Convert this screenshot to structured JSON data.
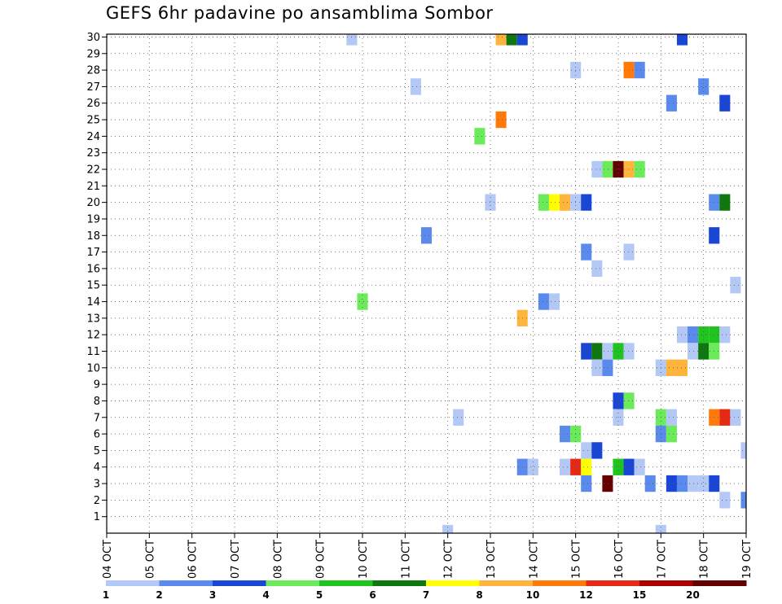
{
  "chart_data": {
    "type": "heatmap",
    "title": "GEFS 6hr padavine po ansamblima Sombor",
    "x_ticks": [
      "04 OCT",
      "05 OCT",
      "06 OCT",
      "07 OCT",
      "08 OCT",
      "09 OCT",
      "10 OCT",
      "11 OCT",
      "12 OCT",
      "13 OCT",
      "14 OCT",
      "15 OCT",
      "16 OCT",
      "17 OCT",
      "18 OCT",
      "19 OCT"
    ],
    "x_range_days": [
      0,
      15
    ],
    "y_ticks": [
      "1",
      "2",
      "3",
      "4",
      "5",
      "6",
      "7",
      "8",
      "9",
      "10",
      "11",
      "12",
      "13",
      "14",
      "15",
      "16",
      "17",
      "18",
      "19",
      "20",
      "21",
      "22",
      "23",
      "24",
      "25",
      "26",
      "27",
      "28",
      "29",
      "30"
    ],
    "y_range": [
      0,
      30
    ],
    "grid": true,
    "step_hours": 6,
    "legend": {
      "placement": "bottom",
      "labels": [
        "1",
        "2",
        "3",
        "4",
        "5",
        "6",
        "7",
        "8",
        "10",
        "12",
        "15",
        "20"
      ],
      "colors": [
        "#b4c8f5",
        "#5a8aeb",
        "#1a46d6",
        "#6bea5a",
        "#1fc41f",
        "#0e780e",
        "#ffff00",
        "#ffb43c",
        "#ff7a0a",
        "#e62814",
        "#aa0000",
        "#640000"
      ]
    },
    "cells": [
      {
        "member": 30,
        "day": 5.75,
        "value": 1
      },
      {
        "member": 30,
        "day": 9.25,
        "value": 8
      },
      {
        "member": 30,
        "day": 9.5,
        "value": 6
      },
      {
        "member": 30,
        "day": 9.75,
        "value": 3
      },
      {
        "member": 30,
        "day": 13.5,
        "value": 3
      },
      {
        "member": 28,
        "day": 11.0,
        "value": 1
      },
      {
        "member": 28,
        "day": 12.25,
        "value": 10
      },
      {
        "member": 28,
        "day": 12.5,
        "value": 2
      },
      {
        "member": 27,
        "day": 7.25,
        "value": 1
      },
      {
        "member": 27,
        "day": 14.0,
        "value": 2
      },
      {
        "member": 26,
        "day": 13.25,
        "value": 2
      },
      {
        "member": 26,
        "day": 14.5,
        "value": 3
      },
      {
        "member": 25,
        "day": 9.25,
        "value": 10
      },
      {
        "member": 24,
        "day": 8.75,
        "value": 4
      },
      {
        "member": 22,
        "day": 11.5,
        "value": 1
      },
      {
        "member": 22,
        "day": 11.75,
        "value": 4
      },
      {
        "member": 22,
        "day": 12.0,
        "value": 20
      },
      {
        "member": 22,
        "day": 12.25,
        "value": 8
      },
      {
        "member": 22,
        "day": 12.5,
        "value": 4
      },
      {
        "member": 20,
        "day": 9.0,
        "value": 1
      },
      {
        "member": 20,
        "day": 10.25,
        "value": 4
      },
      {
        "member": 20,
        "day": 10.5,
        "value": 7
      },
      {
        "member": 20,
        "day": 10.75,
        "value": 8
      },
      {
        "member": 20,
        "day": 11.0,
        "value": 1
      },
      {
        "member": 20,
        "day": 11.25,
        "value": 3
      },
      {
        "member": 20,
        "day": 14.25,
        "value": 2
      },
      {
        "member": 20,
        "day": 14.5,
        "value": 6
      },
      {
        "member": 18,
        "day": 7.5,
        "value": 2
      },
      {
        "member": 18,
        "day": 14.25,
        "value": 3
      },
      {
        "member": 17,
        "day": 11.25,
        "value": 2
      },
      {
        "member": 17,
        "day": 12.25,
        "value": 1
      },
      {
        "member": 16,
        "day": 11.5,
        "value": 1
      },
      {
        "member": 15,
        "day": 14.75,
        "value": 1
      },
      {
        "member": 14,
        "day": 6.0,
        "value": 4
      },
      {
        "member": 14,
        "day": 10.25,
        "value": 2
      },
      {
        "member": 14,
        "day": 10.5,
        "value": 1
      },
      {
        "member": 13,
        "day": 9.75,
        "value": 8
      },
      {
        "member": 12,
        "day": 13.5,
        "value": 1
      },
      {
        "member": 12,
        "day": 13.75,
        "value": 2
      },
      {
        "member": 12,
        "day": 14.0,
        "value": 5
      },
      {
        "member": 12,
        "day": 14.25,
        "value": 5
      },
      {
        "member": 12,
        "day": 14.5,
        "value": 1
      },
      {
        "member": 11,
        "day": 11.25,
        "value": 3
      },
      {
        "member": 11,
        "day": 11.5,
        "value": 6
      },
      {
        "member": 11,
        "day": 11.75,
        "value": 1
      },
      {
        "member": 11,
        "day": 12.0,
        "value": 5
      },
      {
        "member": 11,
        "day": 12.25,
        "value": 1
      },
      {
        "member": 11,
        "day": 13.75,
        "value": 1
      },
      {
        "member": 11,
        "day": 14.0,
        "value": 6
      },
      {
        "member": 11,
        "day": 14.25,
        "value": 4
      },
      {
        "member": 10,
        "day": 11.5,
        "value": 1
      },
      {
        "member": 10,
        "day": 11.75,
        "value": 2
      },
      {
        "member": 10,
        "day": 13.0,
        "value": 1
      },
      {
        "member": 10,
        "day": 13.25,
        "value": 8
      },
      {
        "member": 10,
        "day": 13.5,
        "value": 8
      },
      {
        "member": 8,
        "day": 12.0,
        "value": 3
      },
      {
        "member": 8,
        "day": 12.25,
        "value": 4
      },
      {
        "member": 7,
        "day": 8.25,
        "value": 1
      },
      {
        "member": 7,
        "day": 12.0,
        "value": 1
      },
      {
        "member": 7,
        "day": 13.0,
        "value": 4
      },
      {
        "member": 7,
        "day": 13.25,
        "value": 1
      },
      {
        "member": 7,
        "day": 14.25,
        "value": 10
      },
      {
        "member": 7,
        "day": 14.5,
        "value": 12
      },
      {
        "member": 7,
        "day": 14.75,
        "value": 1
      },
      {
        "member": 6,
        "day": 10.75,
        "value": 2
      },
      {
        "member": 6,
        "day": 11.0,
        "value": 4
      },
      {
        "member": 6,
        "day": 13.0,
        "value": 2
      },
      {
        "member": 6,
        "day": 13.25,
        "value": 4
      },
      {
        "member": 5,
        "day": 11.25,
        "value": 1
      },
      {
        "member": 5,
        "day": 11.5,
        "value": 3
      },
      {
        "member": 5,
        "day": 15.0,
        "value": 1
      },
      {
        "member": 4,
        "day": 9.75,
        "value": 2
      },
      {
        "member": 4,
        "day": 10.0,
        "value": 1
      },
      {
        "member": 4,
        "day": 10.75,
        "value": 1
      },
      {
        "member": 4,
        "day": 11.0,
        "value": 12
      },
      {
        "member": 4,
        "day": 11.25,
        "value": 7
      },
      {
        "member": 4,
        "day": 12.0,
        "value": 5
      },
      {
        "member": 4,
        "day": 12.25,
        "value": 3
      },
      {
        "member": 4,
        "day": 12.5,
        "value": 1
      },
      {
        "member": 3,
        "day": 11.25,
        "value": 2
      },
      {
        "member": 3,
        "day": 11.75,
        "value": 20
      },
      {
        "member": 3,
        "day": 12.75,
        "value": 2
      },
      {
        "member": 3,
        "day": 13.25,
        "value": 3
      },
      {
        "member": 3,
        "day": 13.5,
        "value": 2
      },
      {
        "member": 3,
        "day": 13.75,
        "value": 1
      },
      {
        "member": 3,
        "day": 14.0,
        "value": 1
      },
      {
        "member": 3,
        "day": 14.25,
        "value": 3
      },
      {
        "member": 2,
        "day": 14.5,
        "value": 1
      },
      {
        "member": 2,
        "day": 15.0,
        "value": 2
      },
      {
        "member": 0,
        "day": 8.0,
        "value": 1
      },
      {
        "member": 0,
        "day": 13.0,
        "value": 1
      }
    ]
  }
}
